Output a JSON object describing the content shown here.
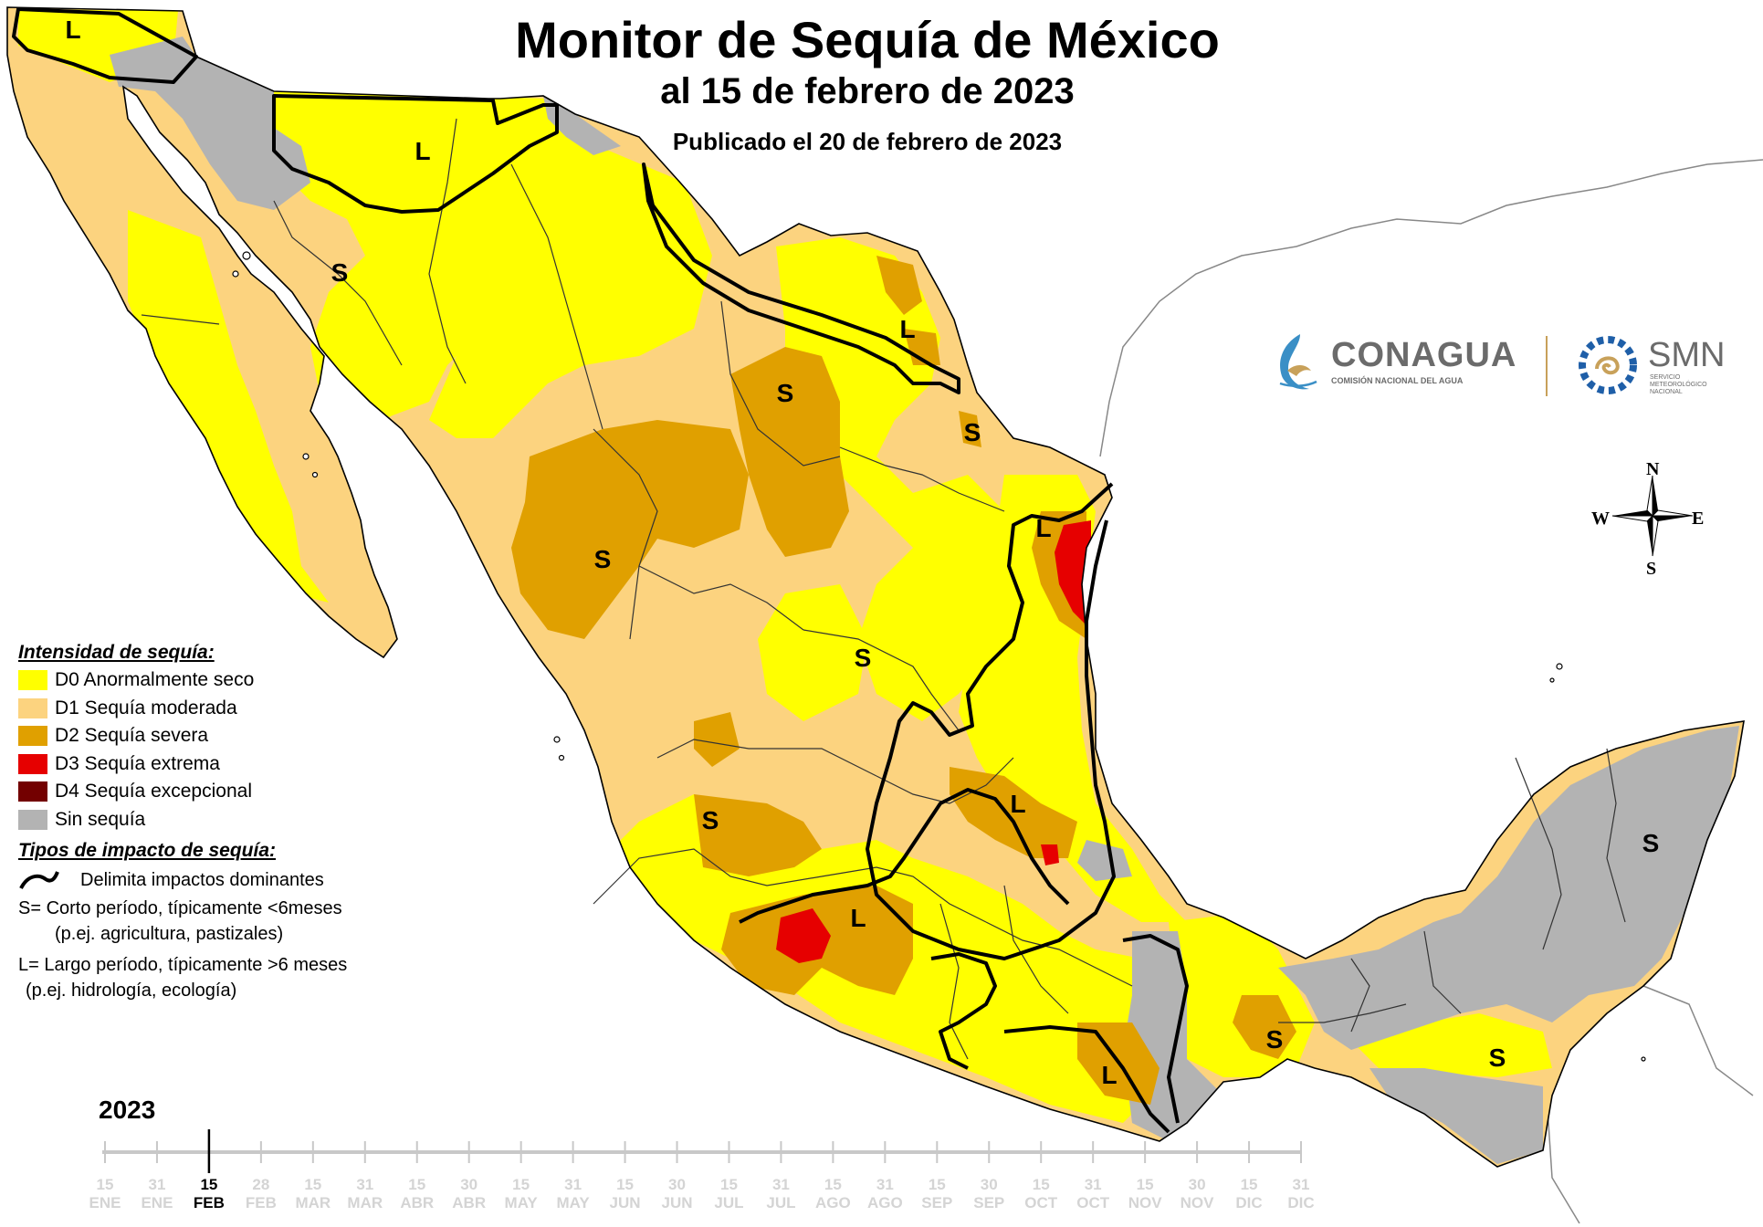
{
  "title": "Monitor de Sequía de México",
  "subtitle": "al 15 de febrero de 2023",
  "published": "Publicado el 20 de febrero de 2023",
  "logos": {
    "conagua": {
      "name": "CONAGUA",
      "subtitle": "COMISIÓN NACIONAL DEL AGUA"
    },
    "smn": {
      "name": "SMN",
      "subtitle": "SERVICIO METEOROLÓGICO NACIONAL"
    }
  },
  "compass": {
    "n": "N",
    "s": "S",
    "e": "E",
    "w": "W"
  },
  "colors": {
    "d0": "#ffff00",
    "d1": "#fcd37f",
    "d2": "#e0a000",
    "d3": "#e60000",
    "d4": "#730000",
    "none": "#b3b3b3",
    "ocean": "#ffffff",
    "border": "#000000"
  },
  "legend": {
    "heading": "Intensidad de sequía:",
    "items": [
      {
        "key": "d0",
        "label": "D0 Anormalmente seco"
      },
      {
        "key": "d1",
        "label": "D1 Sequía moderada"
      },
      {
        "key": "d2",
        "label": "D2 Sequía severa"
      },
      {
        "key": "d3",
        "label": "D3 Sequía extrema"
      },
      {
        "key": "d4",
        "label": "D4 Sequía excepcional"
      },
      {
        "key": "none",
        "label": "Sin sequía"
      }
    ],
    "impact_heading": "Tipos de impacto de sequía:",
    "impact_line": "Delimita impactos dominantes",
    "short_line1": "S= Corto período, típicamente <6meses",
    "short_line2": "(p.ej. agricultura, pastizales)",
    "long_line1": "L= Largo período, típicamente >6 meses",
    "long_line2": "(p.ej. hidrología, ecología)"
  },
  "map_labels": [
    "L",
    "L",
    "S",
    "L",
    "S",
    "S",
    "S",
    "L",
    "S",
    "L",
    "S",
    "L",
    "S",
    "S",
    "S",
    "L"
  ],
  "timeline": {
    "year": "2023",
    "days": [
      "15",
      "31",
      "15",
      "28",
      "15",
      "31",
      "15",
      "30",
      "15",
      "31",
      "15",
      "30",
      "15",
      "31",
      "15",
      "31",
      "15",
      "30",
      "15",
      "31",
      "15",
      "30",
      "15",
      "31"
    ],
    "months": [
      "ENE",
      "ENE",
      "FEB",
      "FEB",
      "MAR",
      "MAR",
      "ABR",
      "ABR",
      "MAY",
      "MAY",
      "JUN",
      "JUN",
      "JUL",
      "JUL",
      "AGO",
      "AGO",
      "SEP",
      "SEP",
      "OCT",
      "OCT",
      "NOV",
      "NOV",
      "DIC",
      "DIC"
    ],
    "active_index": 2
  }
}
